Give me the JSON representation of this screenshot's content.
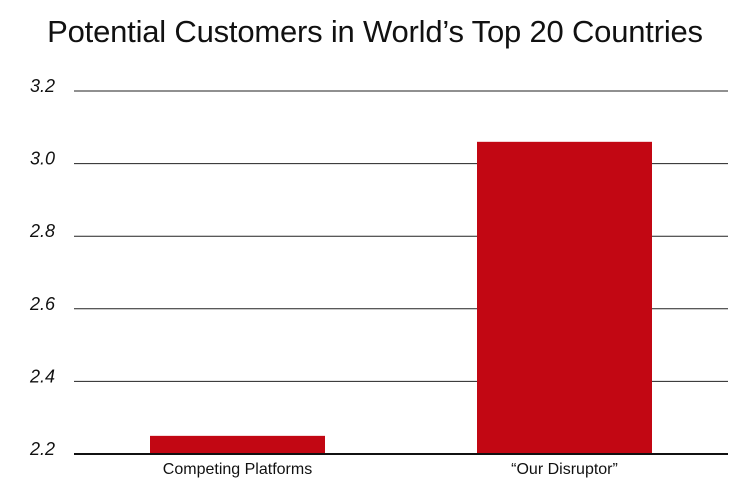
{
  "chart_data": {
    "type": "bar",
    "title": "Potential Customers in World’s Top 20 Countries",
    "xlabel": "",
    "ylabel": "",
    "categories": [
      "Competing Platforms",
      "“Our Disruptor”"
    ],
    "values": [
      2.25,
      3.06
    ],
    "ylim": [
      2.2,
      3.2
    ],
    "yticks": [
      "2.2",
      "2.4",
      "2.6",
      "2.8",
      "3.0",
      "3.2"
    ],
    "grid": true,
    "legend": "none",
    "colors": {
      "bar": "#c20713"
    }
  }
}
